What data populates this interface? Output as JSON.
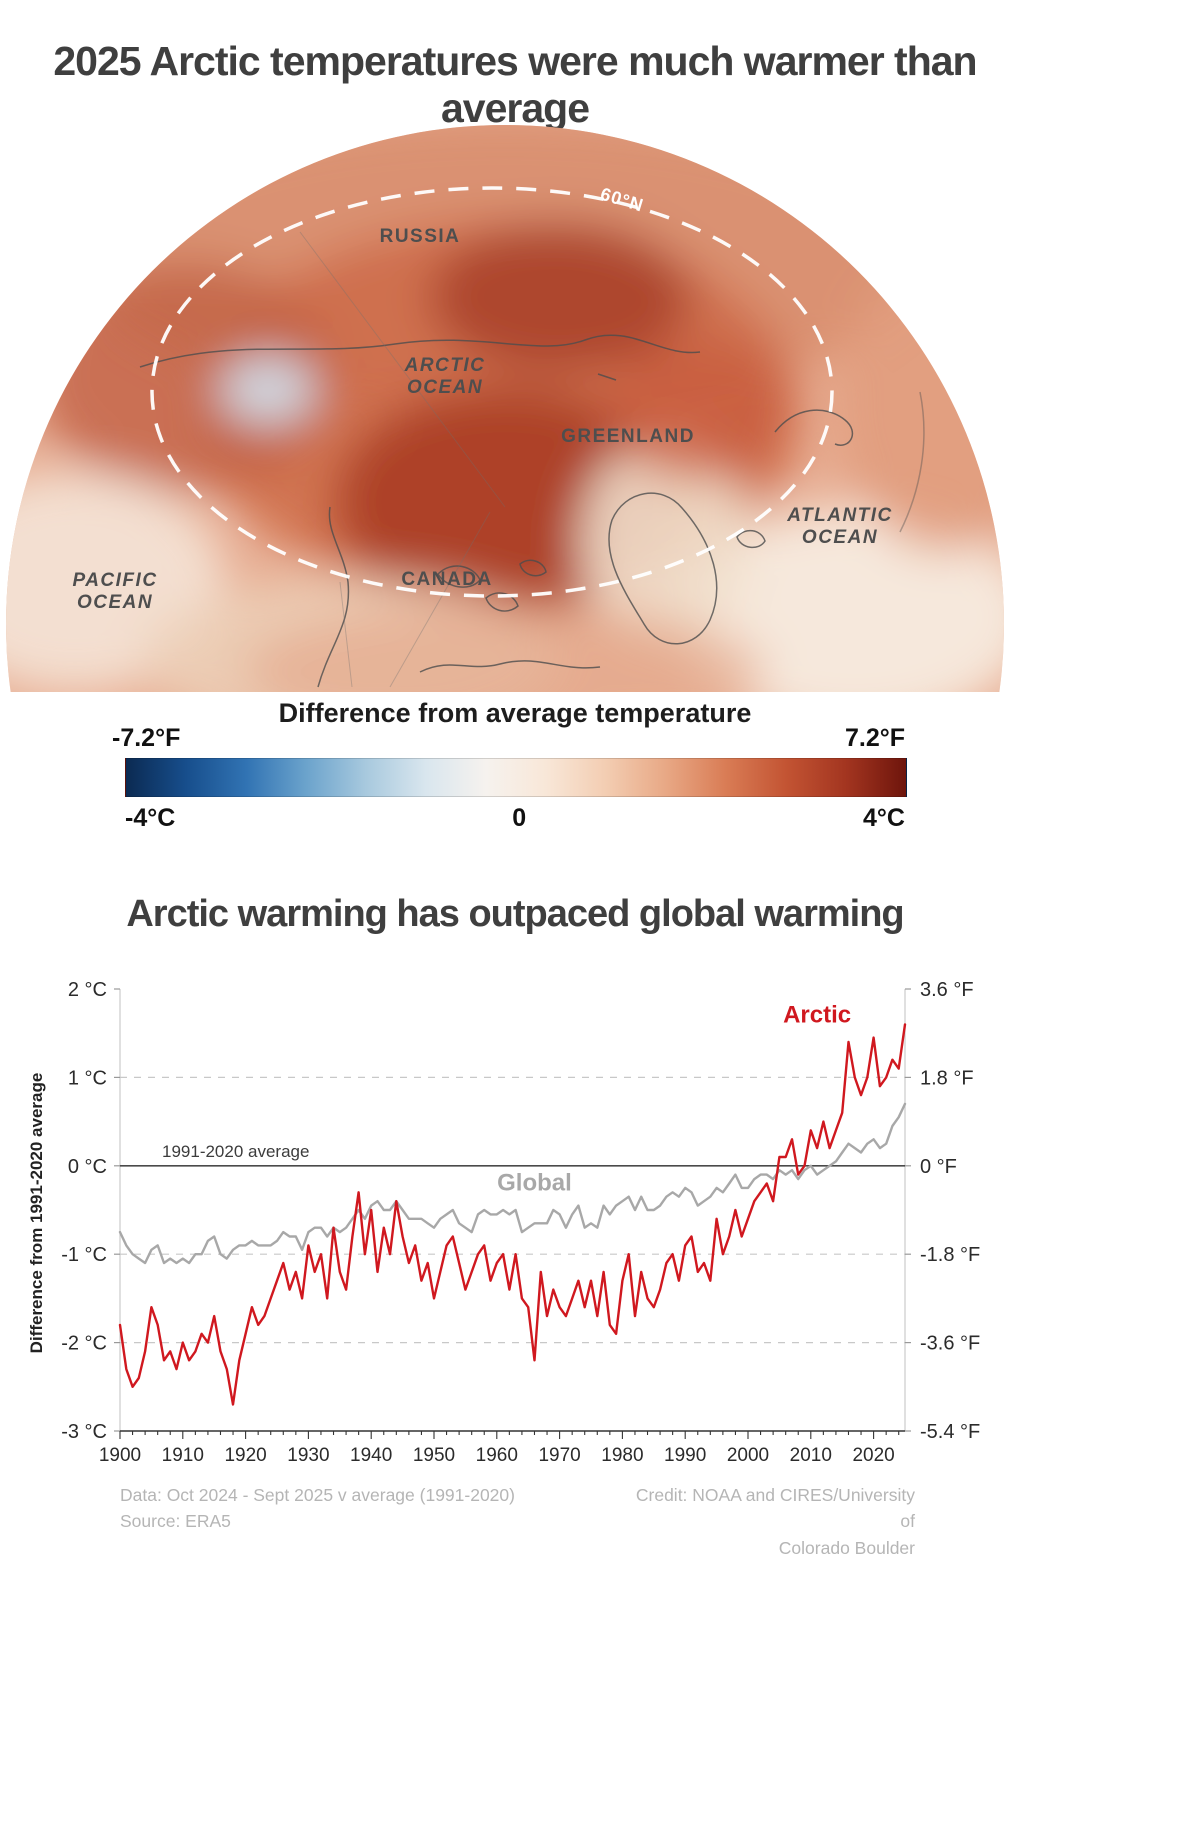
{
  "page": {
    "title1": "2025 Arctic temperatures were much warmer than average",
    "title2": "Arctic warming has outpaced global warming"
  },
  "map": {
    "labels": {
      "russia": "RUSSIA",
      "canada": "CANADA",
      "greenland": "GREENLAND",
      "arctic_line1": "ARCTIC",
      "arctic_line2": "OCEAN",
      "pacific_line1": "PACIFIC",
      "pacific_line2": "OCEAN",
      "atlantic_line1": "ATLANTIC",
      "atlantic_line2": "OCEAN",
      "latitude": "60°N"
    }
  },
  "legend": {
    "title": "Difference from average temperature",
    "f_min": "-7.2°F",
    "f_max": "7.2°F",
    "c_min": "-4°C",
    "c_mid": "0",
    "c_max": "4°C",
    "colors": [
      "#0b2a52",
      "#174e8c",
      "#3173b3",
      "#6ba3cc",
      "#a8c9de",
      "#d9e6ee",
      "#f6f2ee",
      "#f8e7d8",
      "#f3cdb2",
      "#e8a885",
      "#d97c55",
      "#c35433",
      "#a33520",
      "#6e150c"
    ]
  },
  "chart_data": {
    "type": "line",
    "title": "Arctic warming has outpaced global warming",
    "ylabel_left": "Difference from 1991-2020 average",
    "annotation": "1991-2020 average",
    "xlim": [
      1900,
      2025
    ],
    "ylim_c": [
      -3,
      2
    ],
    "x_start": 1900,
    "xticks": [
      1900,
      1910,
      1920,
      1930,
      1940,
      1950,
      1960,
      1970,
      1980,
      1990,
      2000,
      2010,
      2020
    ],
    "yticks": [
      {
        "v": 2,
        "c": "2 °C",
        "f": "3.6 °F"
      },
      {
        "v": 1,
        "c": "1 °C",
        "f": "1.8 °F"
      },
      {
        "v": 0,
        "c": "0 °C",
        "f": "0 °F"
      },
      {
        "v": -1,
        "c": "-1 °C",
        "f": "-1.8 °F"
      },
      {
        "v": -2,
        "c": "-2 °C",
        "f": "-3.6 °F"
      },
      {
        "v": -3,
        "c": "-3 °C",
        "f": "-5.4 °F"
      }
    ],
    "series": [
      {
        "name": "Arctic",
        "color": "#d0181f",
        "values": [
          -1.8,
          -2.3,
          -2.5,
          -2.4,
          -2.1,
          -1.6,
          -1.8,
          -2.2,
          -2.1,
          -2.3,
          -2.0,
          -2.2,
          -2.1,
          -1.9,
          -2.0,
          -1.7,
          -2.1,
          -2.3,
          -2.7,
          -2.2,
          -1.9,
          -1.6,
          -1.8,
          -1.7,
          -1.5,
          -1.3,
          -1.1,
          -1.4,
          -1.2,
          -1.5,
          -0.9,
          -1.2,
          -1.0,
          -1.5,
          -0.7,
          -1.2,
          -1.4,
          -0.8,
          -0.3,
          -1.0,
          -0.5,
          -1.2,
          -0.7,
          -1.0,
          -0.4,
          -0.8,
          -1.1,
          -0.9,
          -1.3,
          -1.1,
          -1.5,
          -1.2,
          -0.9,
          -0.8,
          -1.1,
          -1.4,
          -1.2,
          -1.0,
          -0.9,
          -1.3,
          -1.1,
          -1.0,
          -1.4,
          -1.0,
          -1.5,
          -1.6,
          -2.2,
          -1.2,
          -1.7,
          -1.4,
          -1.6,
          -1.7,
          -1.5,
          -1.3,
          -1.6,
          -1.3,
          -1.7,
          -1.2,
          -1.8,
          -1.9,
          -1.3,
          -1.0,
          -1.7,
          -1.2,
          -1.5,
          -1.6,
          -1.4,
          -1.1,
          -1.0,
          -1.3,
          -0.9,
          -0.8,
          -1.2,
          -1.1,
          -1.3,
          -0.6,
          -1.0,
          -0.8,
          -0.5,
          -0.8,
          -0.6,
          -0.4,
          -0.3,
          -0.2,
          -0.4,
          0.1,
          0.1,
          0.3,
          -0.1,
          0.0,
          0.4,
          0.2,
          0.5,
          0.2,
          0.4,
          0.6,
          1.4,
          1.0,
          0.8,
          1.0,
          1.45,
          0.9,
          1.0,
          1.2,
          1.1,
          1.6
        ]
      },
      {
        "name": "Global",
        "color": "#a8a8a8",
        "values": [
          -0.75,
          -0.9,
          -1.0,
          -1.05,
          -1.1,
          -0.95,
          -0.9,
          -1.1,
          -1.05,
          -1.1,
          -1.05,
          -1.1,
          -1.0,
          -1.0,
          -0.85,
          -0.8,
          -1.0,
          -1.05,
          -0.95,
          -0.9,
          -0.9,
          -0.85,
          -0.9,
          -0.9,
          -0.9,
          -0.85,
          -0.75,
          -0.8,
          -0.8,
          -0.95,
          -0.75,
          -0.7,
          -0.7,
          -0.8,
          -0.7,
          -0.75,
          -0.7,
          -0.6,
          -0.5,
          -0.6,
          -0.45,
          -0.4,
          -0.5,
          -0.5,
          -0.4,
          -0.5,
          -0.6,
          -0.6,
          -0.6,
          -0.65,
          -0.7,
          -0.6,
          -0.55,
          -0.5,
          -0.65,
          -0.7,
          -0.75,
          -0.55,
          -0.5,
          -0.55,
          -0.55,
          -0.5,
          -0.55,
          -0.5,
          -0.75,
          -0.7,
          -0.65,
          -0.65,
          -0.65,
          -0.5,
          -0.55,
          -0.7,
          -0.55,
          -0.45,
          -0.7,
          -0.65,
          -0.7,
          -0.45,
          -0.55,
          -0.45,
          -0.4,
          -0.35,
          -0.5,
          -0.35,
          -0.5,
          -0.5,
          -0.45,
          -0.35,
          -0.3,
          -0.35,
          -0.25,
          -0.3,
          -0.45,
          -0.4,
          -0.35,
          -0.25,
          -0.3,
          -0.2,
          -0.1,
          -0.25,
          -0.25,
          -0.15,
          -0.1,
          -0.1,
          -0.15,
          -0.05,
          -0.1,
          -0.05,
          -0.15,
          -0.05,
          0.0,
          -0.1,
          -0.05,
          0.0,
          0.05,
          0.15,
          0.25,
          0.2,
          0.15,
          0.25,
          0.3,
          0.2,
          0.25,
          0.45,
          0.55,
          0.7
        ]
      }
    ],
    "legend_position": "inline-labels",
    "grid": "dashed horizontal at 1, -1, -2 °C; solid at 0 °C"
  },
  "footer": {
    "left_line1": "Data: Oct 2024 - Sept 2025 v average (1991-2020)",
    "left_line2": "Source: ERA5",
    "right_line1": "Credit: NOAA and CIRES/University of",
    "right_line2": "Colorado Boulder"
  }
}
